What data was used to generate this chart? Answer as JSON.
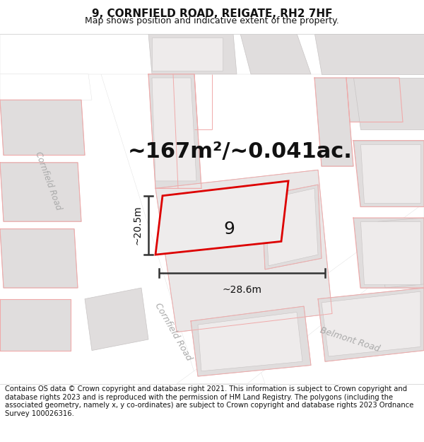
{
  "title_line1": "9, CORNFIELD ROAD, REIGATE, RH2 7HF",
  "title_line2": "Map shows position and indicative extent of the property.",
  "area_text": "~167m²/~0.041ac.",
  "property_number": "9",
  "dim_width": "~28.6m",
  "dim_height": "~20.5m",
  "footer_text": "Contains OS data © Crown copyright and database right 2021. This information is subject to Crown copyright and database rights 2023 and is reproduced with the permission of HM Land Registry. The polygons (including the associated geometry, namely x, y co-ordinates) are subject to Crown copyright and database rights 2023 Ordnance Survey 100026316.",
  "map_bg": "#f5f3f3",
  "road_white": "#ffffff",
  "building_fill": "#e0dddd",
  "building_edge": "#c8c4c4",
  "prop_fill": "#ece8e8",
  "prop_edge": "#dd0000",
  "bound_line": "#f0aaaa",
  "dim_color": "#333333",
  "text_dark": "#111111",
  "road_label_color": "#aaaaaa",
  "title_fs": 11,
  "subtitle_fs": 9,
  "area_fs": 22,
  "num_fs": 18,
  "dim_fs": 10,
  "footer_fs": 7.2,
  "road_label_fs": 9
}
